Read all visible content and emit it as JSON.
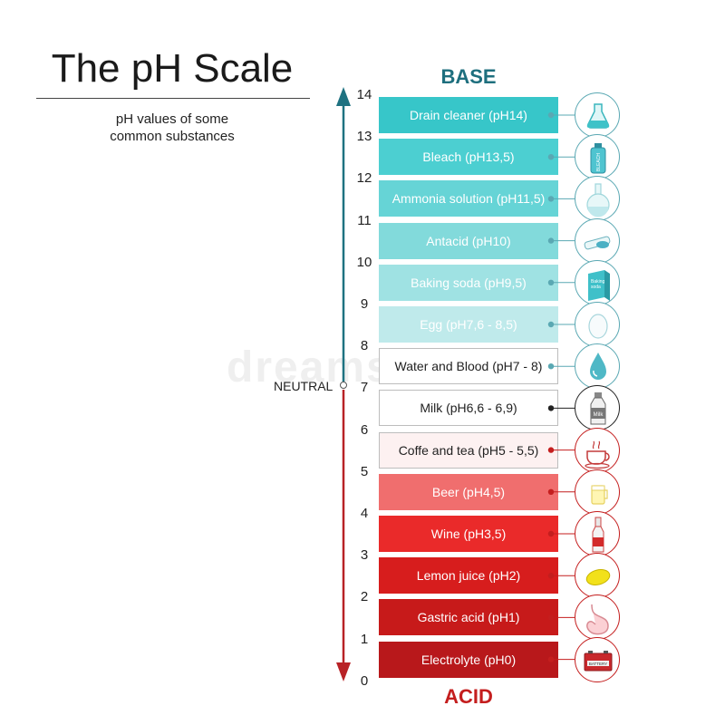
{
  "title": "The pH Scale",
  "subtitle_line1": "pH values of some",
  "subtitle_line2": "common substances",
  "base_label": "BASE",
  "acid_label": "ACID",
  "neutral_label": "NEUTRAL",
  "watermark": "dreamstime",
  "ticks": [
    "14",
    "13",
    "12",
    "11",
    "10",
    "9",
    "8",
    "7",
    "6",
    "5",
    "4",
    "3",
    "2",
    "1",
    "0"
  ],
  "colors": {
    "base_arrow": "#1e7281",
    "acid_arrow": "#b82226",
    "base_line": "#5aa8b3",
    "neutral_line": "#333333",
    "acid_line": "#c64545"
  },
  "substances": [
    {
      "label": "Drain cleaner (pH14)",
      "bg": "#37c6c9",
      "text": "#ffffff",
      "dot": "#5aa8b3",
      "icon": "flask-icon",
      "group": "base"
    },
    {
      "label": "Bleach (pH13,5)",
      "bg": "#4ccfd1",
      "text": "#ffffff",
      "dot": "#5aa8b3",
      "icon": "bleach-bottle-icon",
      "group": "base"
    },
    {
      "label": "Ammonia solution (pH11,5)",
      "bg": "#66d4d6",
      "text": "#ffffff",
      "dot": "#5aa8b3",
      "icon": "round-flask-icon",
      "group": "base"
    },
    {
      "label": "Antacid (pH10)",
      "bg": "#82dadb",
      "text": "#ffffff",
      "dot": "#5aa8b3",
      "icon": "antacid-tablets-icon",
      "group": "base"
    },
    {
      "label": "Baking soda (pH9,5)",
      "bg": "#9fe2e3",
      "text": "#ffffff",
      "dot": "#5aa8b3",
      "icon": "baking-soda-box-icon",
      "group": "base"
    },
    {
      "label": "Egg (pH7,6 - 8,5)",
      "bg": "#bfeaeb",
      "text": "#ffffff",
      "dot": "#5aa8b3",
      "icon": "egg-icon",
      "group": "base"
    },
    {
      "label": "Water and Blood (pH7 - 8)",
      "bg": "#ffffff",
      "text": "#222222",
      "dot": "#5aa8b3",
      "icon": "water-drop-icon",
      "group": "base",
      "bordered": true
    },
    {
      "label": "Milk (pH6,6 - 6,9)",
      "bg": "#ffffff",
      "text": "#222222",
      "dot": "#222222",
      "icon": "milk-bottle-icon",
      "group": "neutral",
      "bordered": true
    },
    {
      "label": "Coffe and tea (pH5 - 5,5)",
      "bg": "#fdf1f1",
      "text": "#222222",
      "dot": "#c41e1e",
      "icon": "coffee-cup-icon",
      "group": "acid",
      "bordered": true
    },
    {
      "label": "Beer (pH4,5)",
      "bg": "#f06e6e",
      "text": "#ffffff",
      "dot": "#c41e1e",
      "icon": "beer-glass-icon",
      "group": "acid"
    },
    {
      "label": "Wine (pH3,5)",
      "bg": "#ea2a2a",
      "text": "#ffffff",
      "dot": "#c41e1e",
      "icon": "wine-bottle-icon",
      "group": "acid"
    },
    {
      "label": "Lemon juice (pH2)",
      "bg": "#d71d1d",
      "text": "#ffffff",
      "dot": "#c41e1e",
      "icon": "lemon-icon",
      "group": "acid"
    },
    {
      "label": "Gastric acid (pH1)",
      "bg": "#c71a1a",
      "text": "#ffffff",
      "dot": "#c41e1e",
      "icon": "stomach-icon",
      "group": "acid"
    },
    {
      "label": "Electrolyte (pH0)",
      "bg": "#b8181b",
      "text": "#ffffff",
      "dot": "#c41e1e",
      "icon": "battery-icon",
      "group": "acid"
    }
  ],
  "icon_texts": {
    "bleach": "BLEACH",
    "baking_soda_1": "Baking",
    "baking_soda_2": "soda",
    "milk": "Milk",
    "battery": "BATTERY"
  }
}
